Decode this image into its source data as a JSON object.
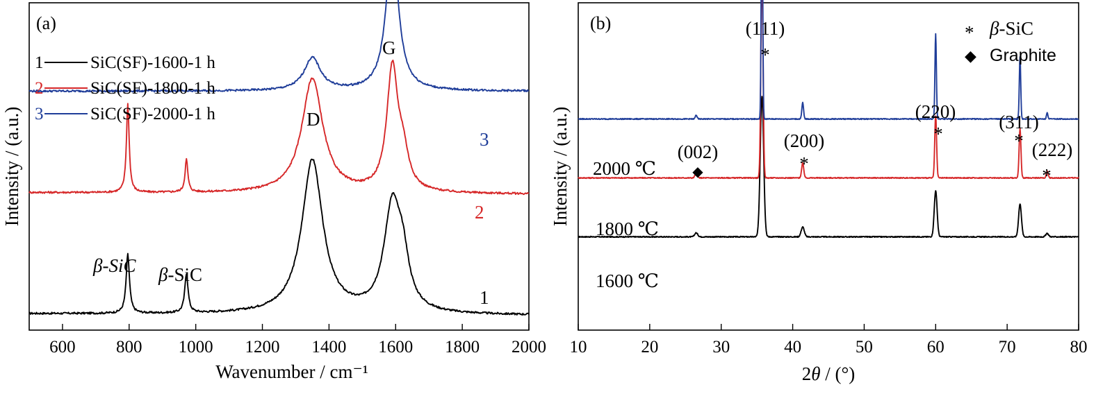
{
  "chart_data": [
    {
      "type": "line",
      "panel_label": "(a)",
      "xlabel": "Wavenumber / cm⁻¹",
      "ylabel": "Intensity / (a.u.)",
      "xlim": [
        500,
        2000
      ],
      "xticks": [
        "600",
        "800",
        "1000",
        "1200",
        "1400",
        "1600",
        "1800",
        "2000"
      ],
      "legend_position": "top-left",
      "legend": [
        {
          "num": "1",
          "label": "SiC(SF)-1600-1 h",
          "color": "#000000"
        },
        {
          "num": "2",
          "label": "SiC(SF)-1800-1 h",
          "color": "#d62728"
        },
        {
          "num": "3",
          "label": "SiC(SF)-2000-1 h",
          "color": "#1f3d99"
        }
      ],
      "annotations": [
        {
          "id": "D",
          "text": "D",
          "x": 1360
        },
        {
          "id": "G",
          "text": "G",
          "x": 1590
        },
        {
          "id": "b1",
          "text": "β-SiC",
          "x": 796
        },
        {
          "id": "b2",
          "text": "β-SiC",
          "x": 972
        }
      ],
      "series": [
        {
          "num": "1",
          "color": "#000000",
          "baseline": 0.05,
          "end": 0.045,
          "peaks": [
            [
              796,
              0.18,
              6
            ],
            [
              972,
              0.12,
              6
            ],
            [
              1350,
              0.47,
              38
            ],
            [
              1590,
              0.32,
              30
            ],
            [
              1622,
              0.12,
              22
            ]
          ]
        },
        {
          "num": "2",
          "color": "#d62728",
          "baseline": 0.42,
          "end": 0.415,
          "peaks": [
            [
              796,
              0.27,
              5
            ],
            [
              972,
              0.1,
              5
            ],
            [
              1350,
              0.35,
              38
            ],
            [
              1590,
              0.37,
              20
            ],
            [
              1622,
              0.1,
              20
            ]
          ]
        },
        {
          "num": "3",
          "color": "#1f3d99",
          "baseline": 0.73,
          "end": 0.73,
          "peaks": [
            [
              1350,
              0.1,
              30
            ],
            [
              1590,
              0.45,
              22
            ]
          ]
        }
      ]
    },
    {
      "type": "line",
      "panel_label": "(b)",
      "xlabel": "2θ / (°)",
      "ylabel": "Intensity / (a.u.)",
      "xlim": [
        10,
        80
      ],
      "xticks": [
        "10",
        "20",
        "30",
        "40",
        "50",
        "60",
        "70",
        "80"
      ],
      "legend_position": "top-right",
      "legend": [
        {
          "symbol": "*",
          "label": "β-SiC"
        },
        {
          "symbol": "◆",
          "label": "Graphite"
        }
      ],
      "reflections": [
        {
          "id": "p002",
          "hkl": "(002)",
          "phase": "graphite",
          "x": 26.5
        },
        {
          "id": "p111",
          "hkl": "(111)",
          "phase": "β-SiC",
          "x": 35.7
        },
        {
          "id": "p200",
          "hkl": "(200)",
          "phase": "β-SiC",
          "x": 41.4
        },
        {
          "id": "p220",
          "hkl": "(220)",
          "phase": "β-SiC",
          "x": 60.0
        },
        {
          "id": "p311",
          "hkl": "(311)",
          "phase": "β-SiC",
          "x": 71.8
        },
        {
          "id": "p222",
          "hkl": "(222)",
          "phase": "β-SiC",
          "x": 75.6
        }
      ],
      "series": [
        {
          "name": "1600 ℃",
          "color": "#000000",
          "baseline": 0.285,
          "peaks": [
            [
              26.5,
              0.012,
              0.22
            ],
            [
              35.7,
              0.43,
              0.24
            ],
            [
              41.4,
              0.03,
              0.22
            ],
            [
              60.0,
              0.14,
              0.2
            ],
            [
              71.8,
              0.1,
              0.2
            ],
            [
              75.6,
              0.01,
              0.2
            ]
          ]
        },
        {
          "name": "1800 ℃",
          "color": "#d62728",
          "baseline": 0.465,
          "peaks": [
            [
              26.5,
              0.02,
              0.15
            ],
            [
              35.7,
              0.64,
              0.15
            ],
            [
              41.4,
              0.045,
              0.15
            ],
            [
              60.0,
              0.19,
              0.13
            ],
            [
              71.8,
              0.15,
              0.13
            ],
            [
              75.6,
              0.02,
              0.13
            ]
          ]
        },
        {
          "name": "2000 ℃",
          "color": "#1f3d99",
          "baseline": 0.645,
          "peaks": [
            [
              26.5,
              0.012,
              0.12
            ],
            [
              35.7,
              0.74,
              0.1
            ],
            [
              41.4,
              0.05,
              0.12
            ],
            [
              60.0,
              0.26,
              0.1
            ],
            [
              71.8,
              0.19,
              0.1
            ],
            [
              75.6,
              0.02,
              0.1
            ]
          ]
        }
      ]
    }
  ]
}
